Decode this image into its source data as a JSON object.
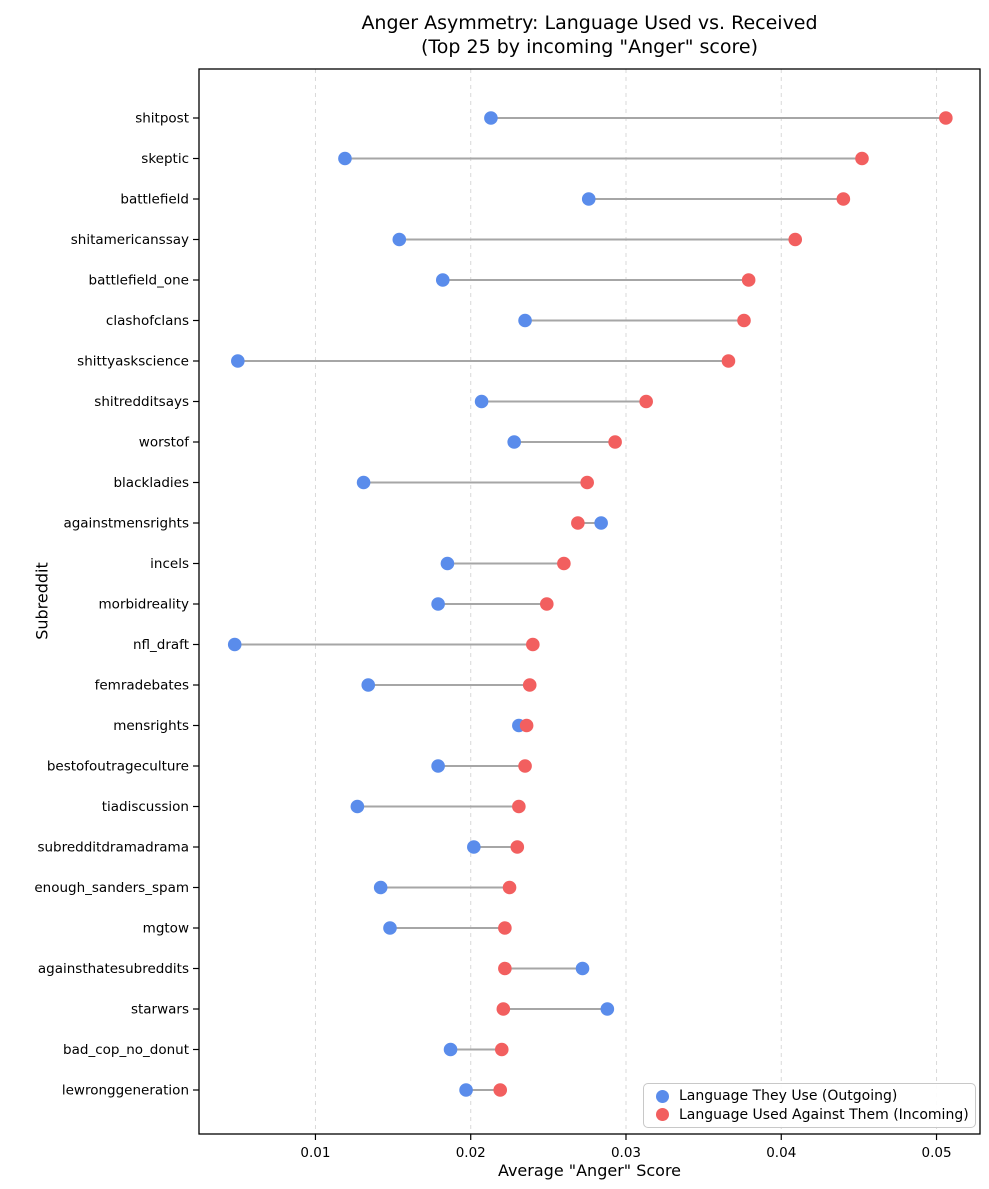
{
  "chart_data": {
    "type": "scatter",
    "variant": "dumbbell",
    "title": "Anger Asymmetry: Language Used vs. Received",
    "subtitle": "(Top 25 by incoming \"Anger\" score)",
    "xlabel": "Average \"Anger\" Score",
    "ylabel": "Subreddit",
    "categories": [
      "shitpost",
      "skeptic",
      "battlefield",
      "shitamericanssay",
      "battlefield_one",
      "clashofclans",
      "shittyaskscience",
      "shitredditsays",
      "worstof",
      "blackladies",
      "againstmensrights",
      "incels",
      "morbidreality",
      "nfl_draft",
      "femradebates",
      "mensrights",
      "bestofoutrageculture",
      "tiadiscussion",
      "subredditdramadrama",
      "enough_sanders_spam",
      "mgtow",
      "againsthatesubreddits",
      "starwars",
      "bad_cop_no_donut",
      "lewronggeneration"
    ],
    "series": [
      {
        "name": "Language They Use (Outgoing)",
        "color": "#5a8ceb",
        "values": [
          0.0213,
          0.0119,
          0.0276,
          0.0154,
          0.0182,
          0.0235,
          0.005,
          0.0207,
          0.0228,
          0.0131,
          0.0284,
          0.0185,
          0.0179,
          0.0048,
          0.0134,
          0.0231,
          0.0179,
          0.0127,
          0.0202,
          0.0142,
          0.0148,
          0.0272,
          0.0288,
          0.0187,
          0.0197
        ]
      },
      {
        "name": "Language Used Against Them (Incoming)",
        "color": "#f25f5f",
        "values": [
          0.0506,
          0.0452,
          0.044,
          0.0409,
          0.0379,
          0.0376,
          0.0366,
          0.0313,
          0.0293,
          0.0275,
          0.0269,
          0.026,
          0.0249,
          0.024,
          0.0238,
          0.0236,
          0.0235,
          0.0231,
          0.023,
          0.0225,
          0.0222,
          0.0222,
          0.0221,
          0.022,
          0.0219
        ]
      }
    ],
    "xlim": [
      0.0025,
      0.0528
    ],
    "xticks": [
      0.01,
      0.02,
      0.03,
      0.04,
      0.05
    ],
    "grid": "vertical-dashed",
    "gridline_color": "#d9d9d9",
    "connector_color": "#a6a6a6",
    "frame_color": "#000000",
    "legend_position": "lower right"
  }
}
